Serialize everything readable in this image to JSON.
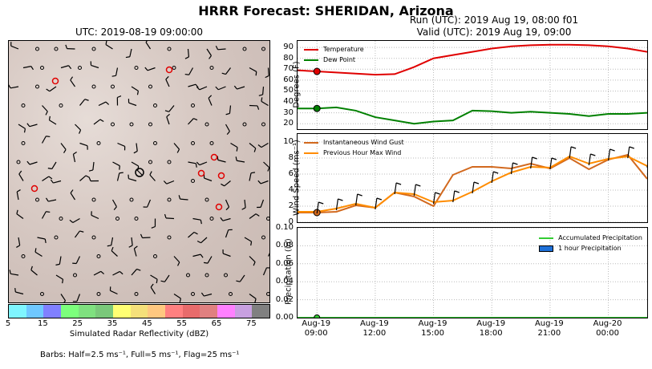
{
  "title": "HRRR Forecast: SHERIDAN, Arizona",
  "map": {
    "title": "UTC: 2019-08-19 09:00:00",
    "colorbar": {
      "label": "Simulated Radar Reflectivity (dBZ)",
      "ticks": [
        "5",
        "15",
        "25",
        "35",
        "45",
        "55",
        "65",
        "75"
      ],
      "colors": [
        "#7ff5ff",
        "#6fc8ff",
        "#8080ff",
        "#7cff7c",
        "#7fe07f",
        "#7ac87a",
        "#ffff73",
        "#f5e07a",
        "#ffc880",
        "#ff8080",
        "#e86b6b",
        "#e08080",
        "#ff80ff",
        "#c8a0e0",
        "#808080"
      ]
    },
    "barbs_note": "Barbs: Half=2.5 ms⁻¹, Full=5 ms⁻¹, Flag=25 ms⁻¹"
  },
  "run_info": {
    "run": "Run (UTC): 2019 Aug 19, 08:00 f01",
    "valid": "Valid (UTC): 2019 Aug 19, 09:00"
  },
  "chart_data": [
    {
      "type": "line",
      "panel": "temperature",
      "ylabel": "Degrees (F)",
      "ylim": [
        15,
        96
      ],
      "yticks": [
        20,
        30,
        40,
        50,
        60,
        70,
        80,
        90
      ],
      "x_hours": [
        8,
        9,
        10,
        11,
        12,
        13,
        14,
        15,
        16,
        17,
        18,
        19,
        20,
        21,
        22,
        23,
        24,
        25,
        26
      ],
      "series": [
        {
          "name": "Temperature",
          "color": "#e00000",
          "values": [
            69,
            68,
            67,
            66,
            65,
            65.5,
            72,
            80,
            83,
            86,
            89,
            91,
            92,
            92.5,
            92.5,
            92,
            91,
            89,
            86
          ]
        },
        {
          "name": "Dew Point",
          "color": "#008000",
          "values": [
            34,
            34,
            35,
            32,
            26,
            23,
            20,
            22,
            23,
            32,
            31.5,
            30,
            31,
            30,
            29,
            27,
            29,
            29,
            30
          ]
        }
      ],
      "marker_hour": 9,
      "markers": [
        68,
        34
      ],
      "grid": true,
      "legend": "top-left"
    },
    {
      "type": "line",
      "panel": "wind",
      "ylabel": "Wind Speed (ms⁻¹)",
      "ylim": [
        0,
        11
      ],
      "yticks": [
        0,
        2,
        4,
        6,
        8,
        10
      ],
      "x_hours": [
        8,
        9,
        10,
        11,
        12,
        13,
        14,
        15,
        16,
        17,
        18,
        19,
        20,
        21,
        22,
        23,
        24,
        25,
        26
      ],
      "series": [
        {
          "name": "Instantaneous Wind Gust",
          "color": "#d2691e",
          "values": [
            1.2,
            1.2,
            1.3,
            2.1,
            1.8,
            3.7,
            3.2,
            2.0,
            5.9,
            6.9,
            6.9,
            6.7,
            7.3,
            6.7,
            8.0,
            6.6,
            7.8,
            8.4,
            5.4
          ]
        },
        {
          "name": "Previous Hour Max Wind",
          "color": "#ff8c00",
          "values": [
            1.3,
            1.3,
            1.7,
            2.3,
            1.8,
            3.7,
            3.5,
            2.5,
            2.7,
            3.8,
            5.1,
            6.2,
            6.9,
            6.8,
            8.2,
            7.3,
            7.9,
            8.2,
            7.0
          ]
        }
      ],
      "marker_hour": 9,
      "markers": [
        1.2
      ],
      "grid": true,
      "legend": "top-left"
    },
    {
      "type": "line",
      "panel": "precip",
      "ylabel": "Precipitation (in)",
      "ylim": [
        0,
        0.1
      ],
      "yticks": [
        "0.00",
        "0.02",
        "0.04",
        "0.06",
        "0.08",
        "0.10"
      ],
      "x_hours": [
        8,
        9,
        10,
        11,
        12,
        13,
        14,
        15,
        16,
        17,
        18,
        19,
        20,
        21,
        22,
        23,
        24,
        25,
        26
      ],
      "series": [
        {
          "name": "Accumulated Precipitation",
          "color": "#33cc33",
          "values": [
            0,
            0,
            0,
            0,
            0,
            0,
            0,
            0,
            0,
            0,
            0,
            0,
            0,
            0,
            0,
            0,
            0,
            0,
            0
          ]
        }
      ],
      "bars_name": "1 hour Precipitation",
      "bars_color": "#1e70d8",
      "marker_hour": 9,
      "grid": true,
      "legend": "top-right",
      "xticks": [
        {
          "hour": 9,
          "line1": "Aug-19",
          "line2": "09:00"
        },
        {
          "hour": 12,
          "line1": "Aug-19",
          "line2": "12:00"
        },
        {
          "hour": 15,
          "line1": "Aug-19",
          "line2": "15:00"
        },
        {
          "hour": 18,
          "line1": "Aug-19",
          "line2": "18:00"
        },
        {
          "hour": 21,
          "line1": "Aug-19",
          "line2": "21:00"
        },
        {
          "hour": 24,
          "line1": "Aug-20",
          "line2": "00:00"
        }
      ]
    }
  ]
}
